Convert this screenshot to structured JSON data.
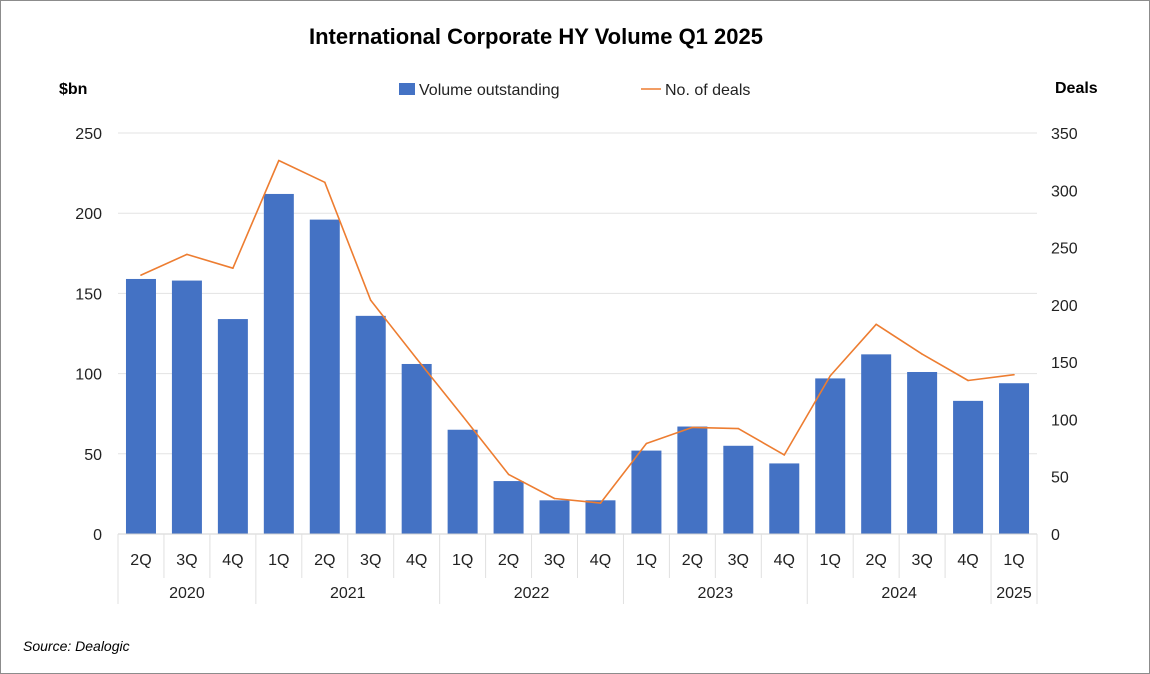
{
  "chart_data": {
    "type": "bar",
    "title": "International Corporate HY Volume Q1 2025",
    "y_left_label": "$bn",
    "y_right_label": "Deals",
    "y_left_lim": [
      0,
      250
    ],
    "y_left_ticks": [
      0,
      50,
      100,
      150,
      200,
      250
    ],
    "y_right_lim": [
      0,
      350
    ],
    "y_right_ticks": [
      0,
      50,
      100,
      150,
      200,
      250,
      300,
      350
    ],
    "grid": true,
    "legend_position": "top",
    "categories": [
      "2Q",
      "3Q",
      "4Q",
      "1Q",
      "2Q",
      "3Q",
      "4Q",
      "1Q",
      "2Q",
      "3Q",
      "4Q",
      "1Q",
      "2Q",
      "3Q",
      "4Q",
      "1Q",
      "2Q",
      "3Q",
      "4Q",
      "1Q"
    ],
    "year_groups": [
      {
        "label": "2020",
        "count": 3
      },
      {
        "label": "2021",
        "count": 4
      },
      {
        "label": "2022",
        "count": 4
      },
      {
        "label": "2023",
        "count": 4
      },
      {
        "label": "2024",
        "count": 4
      },
      {
        "label": "2025",
        "count": 1
      }
    ],
    "series": [
      {
        "name": "Volume outstanding",
        "type": "bar",
        "axis": "left",
        "color": "#4472C4",
        "values": [
          159,
          158,
          134,
          212,
          196,
          136,
          106,
          65,
          33,
          21,
          21,
          52,
          67,
          55,
          44,
          97,
          112,
          101,
          83,
          94
        ]
      },
      {
        "name": "No. of deals",
        "type": "line",
        "axis": "right",
        "color": "#ED7D31",
        "values": [
          226,
          244,
          232,
          326,
          307,
          204,
          153,
          103,
          52,
          31,
          27,
          79,
          93,
          92,
          69,
          138,
          183,
          157,
          134,
          139
        ]
      }
    ]
  },
  "footer": {
    "source": "Source: Dealogic"
  }
}
